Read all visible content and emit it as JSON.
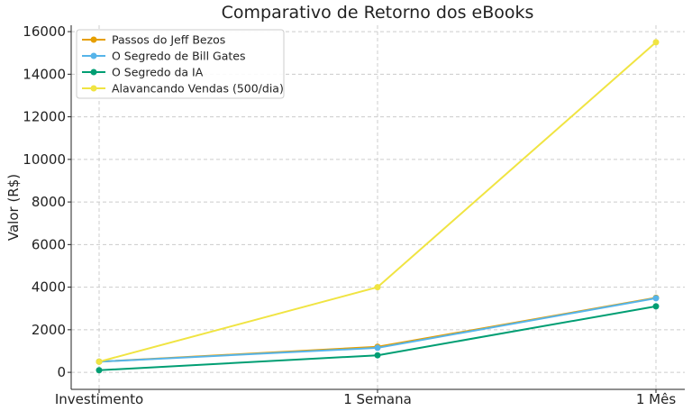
{
  "chart_data": {
    "type": "line",
    "title": "Comparativo de Retorno dos eBooks",
    "xlabel": "",
    "ylabel": "Valor (R$)",
    "categories": [
      "Investimento",
      "1 Semana",
      "1 Mês"
    ],
    "ylim": [
      -800,
      16300
    ],
    "yticks": [
      0,
      2000,
      4000,
      6000,
      8000,
      10000,
      12000,
      14000,
      16000
    ],
    "grid": true,
    "legend_position": "top-left",
    "series": [
      {
        "name": "Passos do Jeff Bezos",
        "values": [
          500,
          1200,
          3500
        ],
        "color": "#E69F00"
      },
      {
        "name": "O Segredo de Bill Gates",
        "values": [
          500,
          1150,
          3480
        ],
        "color": "#56B4E9"
      },
      {
        "name": "O Segredo da IA",
        "values": [
          100,
          800,
          3100
        ],
        "color": "#009E73"
      },
      {
        "name": "Alavancando Vendas (500/dia)",
        "values": [
          500,
          4000,
          15500
        ],
        "color": "#F0E442"
      }
    ]
  }
}
